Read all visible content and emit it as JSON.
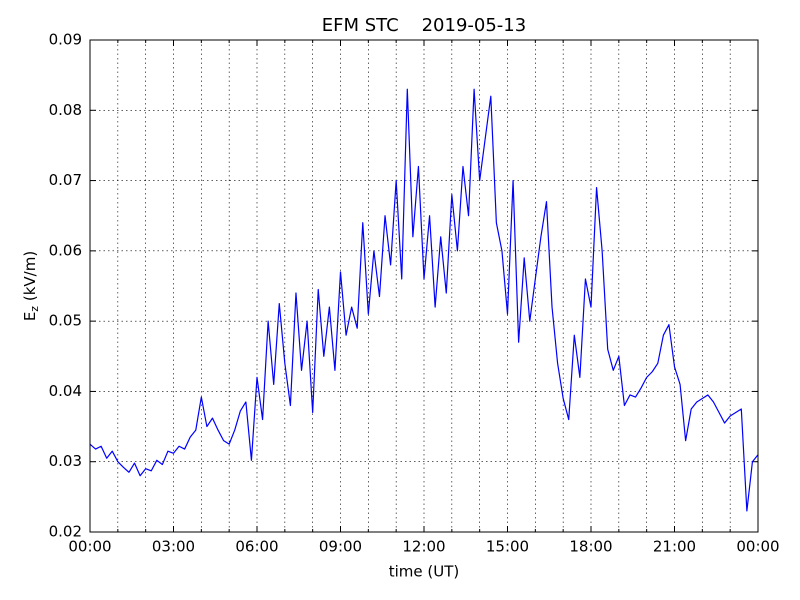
{
  "chart_data": {
    "type": "line",
    "title": "EFM STC    2019-05-13",
    "xlabel": "time (UT)",
    "ylabel_main": "E",
    "ylabel_sub": "z",
    "ylabel_unit": " (kV/m)",
    "xlim": [
      0,
      24
    ],
    "ylim": [
      0.02,
      0.09
    ],
    "xticks": [
      {
        "value": 0,
        "label": "00:00"
      },
      {
        "value": 3,
        "label": "03:00"
      },
      {
        "value": 6,
        "label": "06:00"
      },
      {
        "value": 9,
        "label": "09:00"
      },
      {
        "value": 12,
        "label": "12:00"
      },
      {
        "value": 15,
        "label": "15:00"
      },
      {
        "value": 18,
        "label": "18:00"
      },
      {
        "value": 21,
        "label": "21:00"
      },
      {
        "value": 24,
        "label": "00:00"
      }
    ],
    "xminorticks": [
      1,
      2,
      4,
      5,
      7,
      8,
      10,
      11,
      13,
      14,
      16,
      17,
      19,
      20,
      22,
      23
    ],
    "yticks": [
      0.02,
      0.03,
      0.04,
      0.05,
      0.06,
      0.07,
      0.08,
      0.09
    ],
    "grid": true,
    "x": [
      0,
      0.2,
      0.4,
      0.6,
      0.8,
      1,
      1.2,
      1.4,
      1.6,
      1.8,
      2,
      2.2,
      2.4,
      2.6,
      2.8,
      3,
      3.2,
      3.4,
      3.6,
      3.8,
      4,
      4.2,
      4.4,
      4.6,
      4.8,
      5,
      5.2,
      5.4,
      5.6,
      5.8,
      6,
      6.2,
      6.4,
      6.6,
      6.8,
      7,
      7.2,
      7.4,
      7.6,
      7.8,
      8,
      8.2,
      8.4,
      8.6,
      8.8,
      9,
      9.2,
      9.4,
      9.6,
      9.8,
      10,
      10.2,
      10.4,
      10.6,
      10.8,
      11,
      11.2,
      11.4,
      11.6,
      11.8,
      12,
      12.2,
      12.4,
      12.6,
      12.8,
      13,
      13.2,
      13.4,
      13.6,
      13.8,
      14,
      14.2,
      14.4,
      14.6,
      14.8,
      15,
      15.2,
      15.4,
      15.6,
      15.8,
      16,
      16.2,
      16.4,
      16.6,
      16.8,
      17,
      17.2,
      17.4,
      17.6,
      17.8,
      18,
      18.2,
      18.4,
      18.6,
      18.8,
      19,
      19.2,
      19.4,
      19.6,
      19.8,
      20,
      20.2,
      20.4,
      20.6,
      20.8,
      21,
      21.2,
      21.4,
      21.6,
      21.8,
      22,
      22.2,
      22.4,
      22.6,
      22.8,
      23,
      23.2,
      23.4,
      23.6,
      23.8,
      24
    ],
    "series": [
      {
        "color": "#0000ff",
        "values": [
          0.0325,
          0.0318,
          0.0322,
          0.0305,
          0.0315,
          0.03,
          0.0292,
          0.0285,
          0.0298,
          0.028,
          0.029,
          0.0287,
          0.0302,
          0.0296,
          0.0315,
          0.0312,
          0.0322,
          0.0318,
          0.0335,
          0.0345,
          0.0392,
          0.035,
          0.0362,
          0.0345,
          0.033,
          0.0325,
          0.0345,
          0.0372,
          0.0385,
          0.0302,
          0.042,
          0.036,
          0.05,
          0.041,
          0.0525,
          0.044,
          0.038,
          0.054,
          0.043,
          0.05,
          0.037,
          0.0545,
          0.045,
          0.052,
          0.043,
          0.057,
          0.048,
          0.052,
          0.049,
          0.064,
          0.051,
          0.06,
          0.0535,
          0.065,
          0.058,
          0.07,
          0.056,
          0.083,
          0.062,
          0.072,
          0.056,
          0.065,
          0.052,
          0.062,
          0.054,
          0.068,
          0.06,
          0.072,
          0.065,
          0.083,
          0.07,
          0.076,
          0.082,
          0.064,
          0.06,
          0.051,
          0.07,
          0.047,
          0.059,
          0.05,
          0.056,
          0.062,
          0.067,
          0.052,
          0.044,
          0.039,
          0.036,
          0.048,
          0.042,
          0.056,
          0.052,
          0.069,
          0.06,
          0.046,
          0.043,
          0.045,
          0.038,
          0.0395,
          0.0392,
          0.0405,
          0.042,
          0.0428,
          0.044,
          0.048,
          0.0495,
          0.0435,
          0.041,
          0.033,
          0.0375,
          0.0385,
          0.039,
          0.0395,
          0.0385,
          0.037,
          0.0355,
          0.0365,
          0.037,
          0.0375,
          0.023,
          0.03,
          0.031
        ]
      }
    ]
  }
}
